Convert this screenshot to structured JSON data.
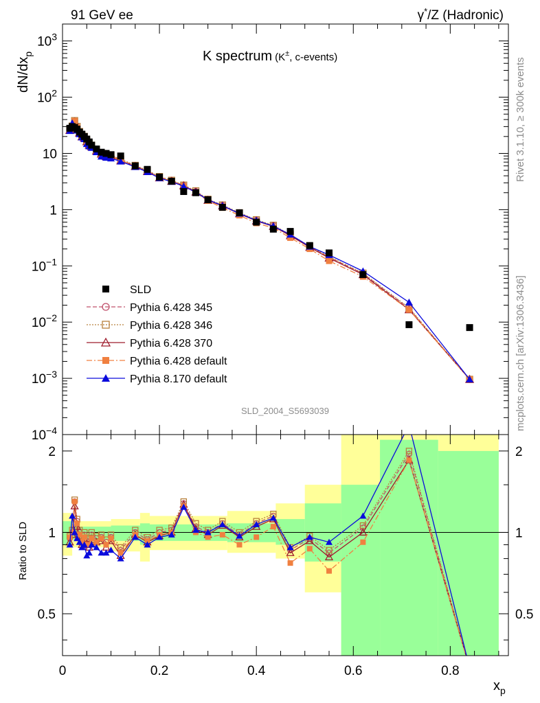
{
  "header": {
    "left": "91 GeV ee",
    "right_base": "γ",
    "right_sup": "*",
    "right_rest": "/Z (Hadronic)"
  },
  "side": {
    "rivet": "Rivet 3.1.10, ≥ 300k events",
    "mcplots": "mcplots.cern.ch [arXiv:1306.3436]"
  },
  "chart_data": {
    "type": "line",
    "title_main": "K spectrum",
    "title_paren_open": "(K",
    "title_sup": "±",
    "title_paren_rest": ", c-events)",
    "analysis": "SLD_2004_S5693039",
    "ylabel_main": "dN/dx",
    "ylabel_sub": "p",
    "ylabel_ratio": "Ratio to SLD",
    "xlabel_main": "x",
    "xlabel_sub": "p",
    "x_range": [
      0,
      0.92
    ],
    "y_range_main": [
      0.0001,
      2000
    ],
    "y_scale_main": "log",
    "y_range_ratio": [
      0.35,
      2.3
    ],
    "y_scale_ratio": "log",
    "x_ticks": [
      "0",
      "0.2",
      "0.4",
      "0.6",
      "0.8"
    ],
    "x_tick_values": [
      0,
      0.2,
      0.4,
      0.6,
      0.8
    ],
    "y_ticks_main": [
      {
        "base": "10",
        "exp": "3",
        "v": 1000
      },
      {
        "base": "10",
        "exp": "2",
        "v": 100
      },
      {
        "base": "10",
        "exp": "",
        "v": 10
      },
      {
        "base": "1",
        "exp": "",
        "v": 1
      },
      {
        "base": "10",
        "exp": "−1",
        "v": 0.1
      },
      {
        "base": "10",
        "exp": "−2",
        "v": 0.01
      },
      {
        "base": "10",
        "exp": "−3",
        "v": 0.001
      },
      {
        "base": "10",
        "exp": "−4",
        "v": 0.0001
      }
    ],
    "y_ticks_ratio": [
      {
        "label": "2",
        "v": 2
      },
      {
        "label": "1",
        "v": 1
      },
      {
        "label": "0.5",
        "v": 0.5
      }
    ],
    "legend_position": "lower-left",
    "x": [
      0.015,
      0.02,
      0.025,
      0.03,
      0.035,
      0.04,
      0.045,
      0.05,
      0.055,
      0.06,
      0.07,
      0.08,
      0.09,
      0.1,
      0.12,
      0.15,
      0.175,
      0.2,
      0.225,
      0.25,
      0.275,
      0.3,
      0.33,
      0.365,
      0.4,
      0.435,
      0.47,
      0.51,
      0.55,
      0.62,
      0.715,
      0.84
    ],
    "data": {
      "name": "SLD",
      "values": [
        28,
        30,
        29,
        27,
        24,
        22,
        20,
        18,
        16,
        14,
        12,
        10.5,
        10,
        9.5,
        9,
        6,
        5.2,
        3.8,
        3.2,
        2.1,
        2.0,
        1.5,
        1.1,
        0.88,
        0.6,
        0.45,
        0.41,
        0.23,
        0.17,
        0.07,
        0.009,
        0.008
      ],
      "color": "#000000"
    },
    "series": [
      {
        "name": "Pythia 6.428 345",
        "color": "#c0506b",
        "marker": "open-circle",
        "dash": "6,3",
        "ratio": [
          0.95,
          1.0,
          1.3,
          1.1,
          1.0,
          0.95,
          0.98,
          0.93,
          0.92,
          0.98,
          0.95,
          0.96,
          0.92,
          0.96,
          0.86,
          1.0,
          0.94,
          1.0,
          1.02,
          1.28,
          1.05,
          1.0,
          1.08,
          0.98,
          1.08,
          1.15,
          0.86,
          0.95,
          0.84,
          1.04,
          1.95,
          0.12
        ]
      },
      {
        "name": "Pythia 6.428 346",
        "color": "#b8803c",
        "marker": "open-square",
        "dash": "2,2",
        "ratio": [
          0.97,
          1.02,
          1.32,
          1.12,
          1.02,
          0.97,
          1.0,
          0.95,
          0.94,
          1.0,
          0.97,
          0.98,
          0.94,
          0.98,
          0.88,
          1.02,
          0.96,
          1.02,
          1.04,
          1.3,
          1.08,
          1.02,
          1.1,
          1.0,
          1.1,
          1.17,
          0.88,
          0.97,
          0.86,
          1.06,
          2.0,
          0.12
        ]
      },
      {
        "name": "Pythia 6.428 370",
        "color": "#9e1c2c",
        "marker": "open-triangle",
        "dash": "",
        "ratio": [
          0.92,
          0.98,
          1.25,
          1.05,
          0.96,
          0.9,
          0.94,
          0.9,
          0.88,
          0.94,
          0.92,
          0.93,
          0.88,
          0.93,
          0.82,
          0.98,
          0.92,
          0.97,
          1.0,
          1.27,
          1.03,
          0.98,
          1.06,
          0.96,
          1.05,
          1.12,
          0.84,
          0.93,
          0.81,
          1.0,
          1.85,
          0.12
        ]
      },
      {
        "name": "Pythia 6.428 default",
        "color": "#f08040",
        "marker": "filled-square",
        "dash": "8,3,2,3",
        "ratio": [
          0.96,
          1.0,
          1.3,
          1.08,
          0.98,
          0.92,
          0.96,
          0.9,
          0.9,
          0.95,
          0.92,
          0.95,
          0.9,
          0.95,
          0.84,
          0.98,
          0.93,
          0.98,
          1.0,
          1.25,
          1.0,
          0.96,
          0.98,
          0.9,
          0.96,
          1.05,
          0.77,
          0.87,
          0.72,
          0.92,
          1.85,
          0.12
        ]
      },
      {
        "name": "Pythia 8.170 default",
        "color": "#0a0adc",
        "marker": "filled-triangle",
        "dash": "",
        "ratio": [
          0.9,
          1.15,
          1.0,
          0.95,
          0.92,
          0.88,
          0.9,
          0.82,
          0.84,
          0.9,
          0.88,
          0.84,
          0.84,
          0.86,
          0.8,
          0.96,
          0.9,
          0.96,
          0.98,
          1.24,
          1.02,
          1.0,
          1.07,
          0.97,
          1.07,
          1.13,
          0.88,
          0.96,
          0.92,
          1.15,
          2.5,
          0.12
        ]
      }
    ],
    "bands": [
      {
        "x0": 0.0,
        "x1": 0.02,
        "yellow": [
          0.82,
          1.18
        ],
        "green": [
          0.9,
          1.1
        ]
      },
      {
        "x0": 0.02,
        "x1": 0.1,
        "yellow": [
          0.88,
          1.1
        ],
        "green": [
          0.94,
          1.05
        ]
      },
      {
        "x0": 0.1,
        "x1": 0.16,
        "yellow": [
          0.85,
          1.12
        ],
        "green": [
          0.93,
          1.06
        ]
      },
      {
        "x0": 0.16,
        "x1": 0.18,
        "yellow": [
          0.78,
          1.18
        ],
        "green": [
          0.9,
          1.08
        ]
      },
      {
        "x0": 0.18,
        "x1": 0.34,
        "yellow": [
          0.86,
          1.15
        ],
        "green": [
          0.93,
          1.07
        ]
      },
      {
        "x0": 0.34,
        "x1": 0.44,
        "yellow": [
          0.84,
          1.2
        ],
        "green": [
          0.92,
          1.08
        ]
      },
      {
        "x0": 0.44,
        "x1": 0.5,
        "yellow": [
          0.8,
          1.28
        ],
        "green": [
          0.9,
          1.12
        ]
      },
      {
        "x0": 0.5,
        "x1": 0.575,
        "yellow": [
          0.6,
          1.5
        ],
        "green": [
          0.78,
          1.28
        ]
      },
      {
        "x0": 0.575,
        "x1": 0.655,
        "yellow": [
          0.3,
          3.0
        ],
        "green": [
          0.3,
          1.5
        ]
      },
      {
        "x0": 0.655,
        "x1": 0.775,
        "yellow": [
          0.3,
          3.0
        ],
        "green": [
          0.3,
          2.2
        ]
      },
      {
        "x0": 0.775,
        "x1": 0.9,
        "yellow": [
          0.3,
          3.0
        ],
        "green": [
          0.3,
          2.0
        ]
      }
    ],
    "band_colors": {
      "yellow": "#ffff99",
      "green": "#99ff99"
    },
    "reference_line": 1
  }
}
